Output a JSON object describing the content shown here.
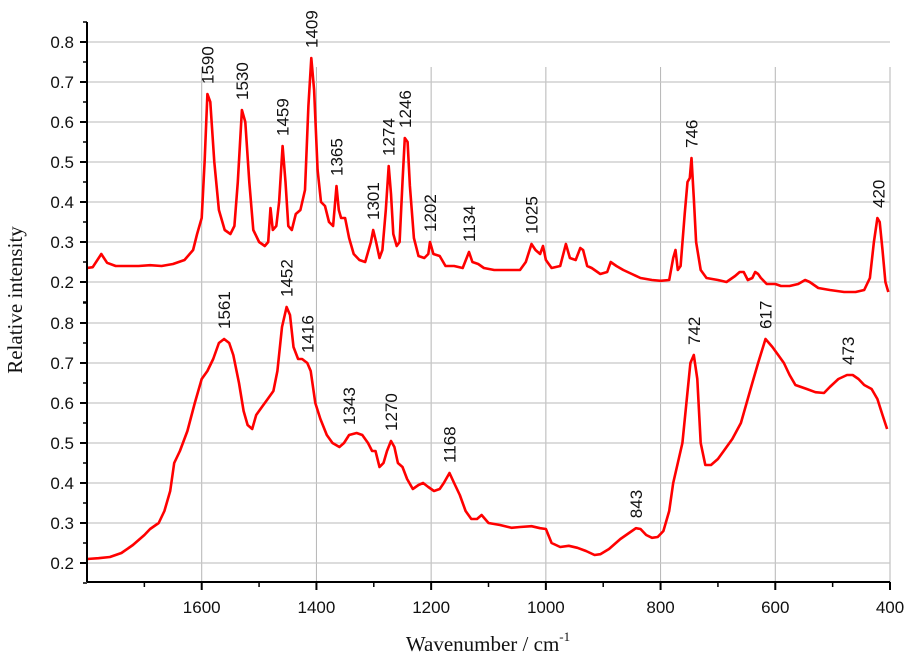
{
  "chart_data": {
    "type": "line",
    "title": "",
    "xlabel": "Wavenumber / cm",
    "xlabel_superscript": "-1",
    "ylabel": "Relative intensity",
    "xlim": [
      1800,
      400
    ],
    "x_ticks": [
      1600,
      1400,
      1200,
      1000,
      800,
      600,
      400
    ],
    "ylim_per_panel": [
      0.15,
      0.85
    ],
    "y_ticks": [
      "0.2",
      "0.3",
      "0.4",
      "0.5",
      "0.6",
      "0.7",
      "0.8"
    ],
    "grid": true,
    "line_color": "#ff0000",
    "series": [
      {
        "name": "upper spectrum",
        "peak_labels": [
          "1590",
          "1530",
          "1459",
          "1409",
          "1365",
          "1301",
          "1274",
          "1246",
          "1202",
          "1134",
          "1025",
          "746",
          "420"
        ],
        "points": [
          [
            1800,
            0.235
          ],
          [
            1790,
            0.237
          ],
          [
            1775,
            0.27
          ],
          [
            1765,
            0.248
          ],
          [
            1750,
            0.24
          ],
          [
            1730,
            0.24
          ],
          [
            1710,
            0.24
          ],
          [
            1690,
            0.242
          ],
          [
            1670,
            0.24
          ],
          [
            1650,
            0.245
          ],
          [
            1630,
            0.255
          ],
          [
            1615,
            0.28
          ],
          [
            1608,
            0.32
          ],
          [
            1600,
            0.36
          ],
          [
            1595,
            0.5
          ],
          [
            1590,
            0.67
          ],
          [
            1585,
            0.65
          ],
          [
            1578,
            0.5
          ],
          [
            1570,
            0.38
          ],
          [
            1560,
            0.33
          ],
          [
            1550,
            0.32
          ],
          [
            1543,
            0.34
          ],
          [
            1537,
            0.45
          ],
          [
            1530,
            0.63
          ],
          [
            1524,
            0.6
          ],
          [
            1517,
            0.45
          ],
          [
            1510,
            0.33
          ],
          [
            1500,
            0.3
          ],
          [
            1490,
            0.29
          ],
          [
            1484,
            0.3
          ],
          [
            1480,
            0.385
          ],
          [
            1476,
            0.33
          ],
          [
            1470,
            0.34
          ],
          [
            1465,
            0.4
          ],
          [
            1459,
            0.54
          ],
          [
            1454,
            0.45
          ],
          [
            1449,
            0.34
          ],
          [
            1443,
            0.33
          ],
          [
            1436,
            0.37
          ],
          [
            1428,
            0.38
          ],
          [
            1420,
            0.43
          ],
          [
            1414,
            0.64
          ],
          [
            1409,
            0.76
          ],
          [
            1404,
            0.68
          ],
          [
            1398,
            0.48
          ],
          [
            1392,
            0.4
          ],
          [
            1385,
            0.39
          ],
          [
            1378,
            0.35
          ],
          [
            1371,
            0.34
          ],
          [
            1365,
            0.44
          ],
          [
            1361,
            0.38
          ],
          [
            1357,
            0.36
          ],
          [
            1350,
            0.36
          ],
          [
            1343,
            0.31
          ],
          [
            1335,
            0.27
          ],
          [
            1325,
            0.255
          ],
          [
            1315,
            0.25
          ],
          [
            1305,
            0.3
          ],
          [
            1301,
            0.33
          ],
          [
            1296,
            0.3
          ],
          [
            1290,
            0.26
          ],
          [
            1285,
            0.28
          ],
          [
            1279,
            0.38
          ],
          [
            1274,
            0.49
          ],
          [
            1270,
            0.42
          ],
          [
            1266,
            0.32
          ],
          [
            1260,
            0.29
          ],
          [
            1255,
            0.3
          ],
          [
            1250,
            0.45
          ],
          [
            1246,
            0.56
          ],
          [
            1241,
            0.55
          ],
          [
            1237,
            0.44
          ],
          [
            1230,
            0.31
          ],
          [
            1222,
            0.265
          ],
          [
            1212,
            0.26
          ],
          [
            1205,
            0.27
          ],
          [
            1202,
            0.3
          ],
          [
            1196,
            0.27
          ],
          [
            1185,
            0.265
          ],
          [
            1175,
            0.24
          ],
          [
            1160,
            0.24
          ],
          [
            1145,
            0.235
          ],
          [
            1134,
            0.275
          ],
          [
            1128,
            0.25
          ],
          [
            1118,
            0.245
          ],
          [
            1108,
            0.235
          ],
          [
            1090,
            0.23
          ],
          [
            1070,
            0.23
          ],
          [
            1045,
            0.23
          ],
          [
            1035,
            0.25
          ],
          [
            1025,
            0.295
          ],
          [
            1018,
            0.28
          ],
          [
            1010,
            0.27
          ],
          [
            1005,
            0.29
          ],
          [
            1000,
            0.255
          ],
          [
            990,
            0.235
          ],
          [
            975,
            0.24
          ],
          [
            965,
            0.295
          ],
          [
            958,
            0.26
          ],
          [
            948,
            0.255
          ],
          [
            940,
            0.285
          ],
          [
            935,
            0.28
          ],
          [
            928,
            0.24
          ],
          [
            920,
            0.235
          ],
          [
            905,
            0.22
          ],
          [
            893,
            0.225
          ],
          [
            887,
            0.25
          ],
          [
            877,
            0.24
          ],
          [
            865,
            0.23
          ],
          [
            850,
            0.22
          ],
          [
            835,
            0.21
          ],
          [
            815,
            0.205
          ],
          [
            800,
            0.203
          ],
          [
            785,
            0.205
          ],
          [
            778,
            0.26
          ],
          [
            774,
            0.28
          ],
          [
            770,
            0.23
          ],
          [
            765,
            0.24
          ],
          [
            758,
            0.37
          ],
          [
            753,
            0.45
          ],
          [
            749,
            0.46
          ],
          [
            746,
            0.51
          ],
          [
            742,
            0.41
          ],
          [
            738,
            0.3
          ],
          [
            730,
            0.23
          ],
          [
            720,
            0.21
          ],
          [
            700,
            0.205
          ],
          [
            685,
            0.2
          ],
          [
            670,
            0.215
          ],
          [
            662,
            0.225
          ],
          [
            655,
            0.225
          ],
          [
            648,
            0.205
          ],
          [
            640,
            0.21
          ],
          [
            635,
            0.225
          ],
          [
            630,
            0.22
          ],
          [
            625,
            0.21
          ],
          [
            615,
            0.195
          ],
          [
            600,
            0.195
          ],
          [
            590,
            0.19
          ],
          [
            575,
            0.19
          ],
          [
            560,
            0.195
          ],
          [
            548,
            0.205
          ],
          [
            540,
            0.2
          ],
          [
            525,
            0.185
          ],
          [
            505,
            0.18
          ],
          [
            480,
            0.175
          ],
          [
            460,
            0.175
          ],
          [
            445,
            0.18
          ],
          [
            435,
            0.21
          ],
          [
            428,
            0.3
          ],
          [
            422,
            0.36
          ],
          [
            418,
            0.35
          ],
          [
            413,
            0.28
          ],
          [
            408,
            0.2
          ],
          [
            403,
            0.175
          ]
        ]
      },
      {
        "name": "lower spectrum",
        "peak_labels": [
          "1561",
          "1452",
          "1416",
          "1343",
          "1270",
          "1168",
          "843",
          "742",
          "617",
          "473"
        ],
        "points": [
          [
            1800,
            0.21
          ],
          [
            1780,
            0.212
          ],
          [
            1760,
            0.215
          ],
          [
            1740,
            0.225
          ],
          [
            1720,
            0.245
          ],
          [
            1700,
            0.27
          ],
          [
            1690,
            0.285
          ],
          [
            1675,
            0.3
          ],
          [
            1665,
            0.33
          ],
          [
            1655,
            0.38
          ],
          [
            1648,
            0.45
          ],
          [
            1638,
            0.48
          ],
          [
            1625,
            0.53
          ],
          [
            1612,
            0.6
          ],
          [
            1600,
            0.66
          ],
          [
            1590,
            0.68
          ],
          [
            1580,
            0.71
          ],
          [
            1570,
            0.75
          ],
          [
            1561,
            0.76
          ],
          [
            1552,
            0.75
          ],
          [
            1545,
            0.72
          ],
          [
            1535,
            0.65
          ],
          [
            1527,
            0.58
          ],
          [
            1520,
            0.545
          ],
          [
            1512,
            0.535
          ],
          [
            1505,
            0.57
          ],
          [
            1495,
            0.59
          ],
          [
            1485,
            0.61
          ],
          [
            1475,
            0.63
          ],
          [
            1468,
            0.68
          ],
          [
            1460,
            0.79
          ],
          [
            1452,
            0.84
          ],
          [
            1446,
            0.82
          ],
          [
            1440,
            0.74
          ],
          [
            1432,
            0.71
          ],
          [
            1425,
            0.71
          ],
          [
            1416,
            0.7
          ],
          [
            1410,
            0.68
          ],
          [
            1402,
            0.6
          ],
          [
            1393,
            0.56
          ],
          [
            1382,
            0.52
          ],
          [
            1372,
            0.5
          ],
          [
            1360,
            0.49
          ],
          [
            1352,
            0.5
          ],
          [
            1343,
            0.52
          ],
          [
            1330,
            0.525
          ],
          [
            1320,
            0.52
          ],
          [
            1310,
            0.5
          ],
          [
            1303,
            0.48
          ],
          [
            1297,
            0.48
          ],
          [
            1290,
            0.44
          ],
          [
            1283,
            0.45
          ],
          [
            1277,
            0.48
          ],
          [
            1270,
            0.505
          ],
          [
            1264,
            0.49
          ],
          [
            1258,
            0.45
          ],
          [
            1250,
            0.44
          ],
          [
            1242,
            0.41
          ],
          [
            1232,
            0.385
          ],
          [
            1222,
            0.395
          ],
          [
            1214,
            0.4
          ],
          [
            1205,
            0.39
          ],
          [
            1195,
            0.38
          ],
          [
            1185,
            0.385
          ],
          [
            1178,
            0.4
          ],
          [
            1168,
            0.425
          ],
          [
            1160,
            0.4
          ],
          [
            1150,
            0.37
          ],
          [
            1140,
            0.33
          ],
          [
            1130,
            0.31
          ],
          [
            1120,
            0.31
          ],
          [
            1112,
            0.32
          ],
          [
            1100,
            0.3
          ],
          [
            1080,
            0.295
          ],
          [
            1060,
            0.288
          ],
          [
            1045,
            0.29
          ],
          [
            1025,
            0.292
          ],
          [
            1010,
            0.287
          ],
          [
            1000,
            0.285
          ],
          [
            990,
            0.25
          ],
          [
            975,
            0.24
          ],
          [
            960,
            0.243
          ],
          [
            945,
            0.238
          ],
          [
            930,
            0.23
          ],
          [
            915,
            0.22
          ],
          [
            905,
            0.222
          ],
          [
            890,
            0.235
          ],
          [
            870,
            0.26
          ],
          [
            855,
            0.275
          ],
          [
            843,
            0.287
          ],
          [
            835,
            0.285
          ],
          [
            825,
            0.27
          ],
          [
            815,
            0.263
          ],
          [
            805,
            0.265
          ],
          [
            795,
            0.28
          ],
          [
            785,
            0.33
          ],
          [
            778,
            0.4
          ],
          [
            770,
            0.45
          ],
          [
            762,
            0.5
          ],
          [
            755,
            0.6
          ],
          [
            748,
            0.7
          ],
          [
            742,
            0.72
          ],
          [
            736,
            0.66
          ],
          [
            730,
            0.5
          ],
          [
            722,
            0.445
          ],
          [
            712,
            0.445
          ],
          [
            700,
            0.46
          ],
          [
            690,
            0.48
          ],
          [
            675,
            0.51
          ],
          [
            660,
            0.55
          ],
          [
            650,
            0.6
          ],
          [
            640,
            0.65
          ],
          [
            630,
            0.7
          ],
          [
            617,
            0.76
          ],
          [
            605,
            0.74
          ],
          [
            595,
            0.72
          ],
          [
            585,
            0.7
          ],
          [
            575,
            0.67
          ],
          [
            565,
            0.645
          ],
          [
            555,
            0.64
          ],
          [
            545,
            0.635
          ],
          [
            530,
            0.627
          ],
          [
            515,
            0.625
          ],
          [
            505,
            0.64
          ],
          [
            490,
            0.66
          ],
          [
            475,
            0.67
          ],
          [
            465,
            0.67
          ],
          [
            455,
            0.66
          ],
          [
            445,
            0.645
          ],
          [
            432,
            0.635
          ],
          [
            422,
            0.61
          ],
          [
            413,
            0.57
          ],
          [
            405,
            0.535
          ]
        ]
      }
    ]
  }
}
